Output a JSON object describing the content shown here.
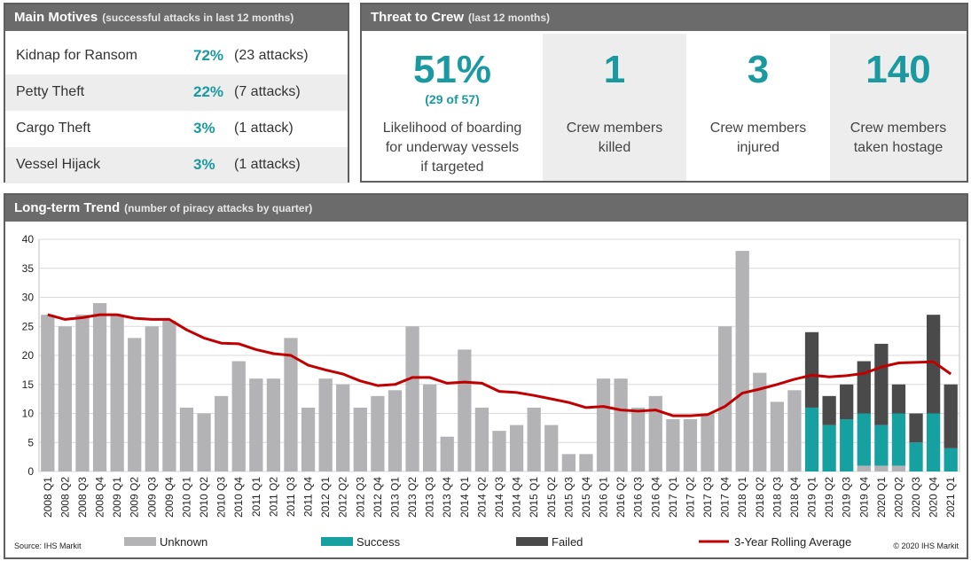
{
  "motives": {
    "title": "Main Motives",
    "subtitle": "(successful attacks in last 12 months)",
    "rows": [
      {
        "label": "Kidnap for Ransom",
        "pct": "72%",
        "count": "(23 attacks)"
      },
      {
        "label": "Petty Theft",
        "pct": "22%",
        "count": "(7 attacks)"
      },
      {
        "label": "Cargo Theft",
        "pct": "3%",
        "count": "(1 attack)"
      },
      {
        "label": "Vessel Hijack",
        "pct": "3%",
        "count": "(1 attacks)"
      }
    ]
  },
  "threat": {
    "title": "Threat to Crew",
    "subtitle": "(last 12 months)",
    "cells": [
      {
        "big": "51%",
        "sub": "(29 of 57)",
        "desc_lines": [
          "Likelihood of boarding",
          "for underway vessels",
          "if targeted"
        ]
      },
      {
        "big": "1",
        "sub": "",
        "desc_lines": [
          "Crew members",
          "killed"
        ]
      },
      {
        "big": "3",
        "sub": "",
        "desc_lines": [
          "Crew members",
          "injured"
        ]
      },
      {
        "big": "140",
        "sub": "",
        "desc_lines": [
          "Crew members",
          "taken hostage"
        ]
      }
    ]
  },
  "trend": {
    "title": "Long-term Trend",
    "subtitle": "(number of piracy attacks by quarter)",
    "source": "Source: IHS Markit",
    "copyright": "© 2020 IHS Markit"
  },
  "colors": {
    "unknown": "#b3b3b5",
    "success": "#16a0a0",
    "failed": "#4a4a4a",
    "average": "#c00000",
    "accent": "#1a9aa0"
  },
  "chart_data": {
    "type": "bar",
    "stacked": true,
    "ylim": [
      0,
      40
    ],
    "yticks": [
      0,
      5,
      10,
      15,
      20,
      25,
      30,
      35,
      40
    ],
    "grid": true,
    "legend_position": "bottom",
    "categories": [
      "2008 Q1",
      "2008 Q2",
      "2008 Q3",
      "2008 Q4",
      "2009 Q1",
      "2009 Q2",
      "2009 Q3",
      "2009 Q4",
      "2010 Q1",
      "2010 Q2",
      "2010 Q3",
      "2010 Q4",
      "2011 Q1",
      "2011 Q2",
      "2011 Q3",
      "2011 Q4",
      "2012 Q1",
      "2012 Q2",
      "2012 Q3",
      "2012 Q4",
      "2013 Q1",
      "2013 Q2",
      "2013 Q3",
      "2013 Q4",
      "2014 Q1",
      "2014 Q2",
      "2014 Q3",
      "2014 Q4",
      "2015 Q1",
      "2015 Q2",
      "2015 Q3",
      "2015 Q4",
      "2016 Q1",
      "2016 Q2",
      "2016 Q3",
      "2016 Q4",
      "2017 Q1",
      "2017 Q2",
      "2017 Q3",
      "2017 Q4",
      "2018 Q1",
      "2018 Q2",
      "2018 Q3",
      "2018 Q4",
      "2019 Q1",
      "2019 Q2",
      "2019 Q3",
      "2019 Q4",
      "2020 Q1",
      "2020 Q2",
      "2020 Q3",
      "2020 Q4",
      "2021 Q1"
    ],
    "series": [
      {
        "name": "Unknown",
        "kind": "bar",
        "values": [
          27,
          25,
          27,
          29,
          27,
          23,
          25,
          26,
          11,
          10,
          13,
          19,
          16,
          16,
          23,
          11,
          16,
          15,
          11,
          13,
          14,
          25,
          15,
          6,
          21,
          11,
          7,
          8,
          11,
          8,
          3,
          3,
          16,
          16,
          11,
          13,
          9,
          9,
          10,
          25,
          38,
          17,
          12,
          14,
          0,
          0,
          0,
          1,
          1,
          1,
          0,
          0,
          0
        ]
      },
      {
        "name": "Success",
        "kind": "bar",
        "values": [
          0,
          0,
          0,
          0,
          0,
          0,
          0,
          0,
          0,
          0,
          0,
          0,
          0,
          0,
          0,
          0,
          0,
          0,
          0,
          0,
          0,
          0,
          0,
          0,
          0,
          0,
          0,
          0,
          0,
          0,
          0,
          0,
          0,
          0,
          0,
          0,
          0,
          0,
          0,
          0,
          0,
          0,
          0,
          0,
          11,
          8,
          9,
          9,
          7,
          9,
          5,
          10,
          4
        ]
      },
      {
        "name": "Failed",
        "kind": "bar",
        "values": [
          0,
          0,
          0,
          0,
          0,
          0,
          0,
          0,
          0,
          0,
          0,
          0,
          0,
          0,
          0,
          0,
          0,
          0,
          0,
          0,
          0,
          0,
          0,
          0,
          0,
          0,
          0,
          0,
          0,
          0,
          0,
          0,
          0,
          0,
          0,
          0,
          0,
          0,
          0,
          0,
          0,
          0,
          0,
          0,
          13,
          5,
          6,
          9,
          14,
          5,
          5,
          17,
          11
        ]
      },
      {
        "name": "3-Year Rolling Average",
        "kind": "line",
        "values": [
          27,
          26.2,
          26.5,
          27,
          27,
          26.4,
          26.2,
          26.2,
          24.4,
          23,
          22.1,
          22,
          21,
          20.3,
          20,
          18.3,
          17.5,
          16.8,
          15.6,
          14.8,
          15,
          16.2,
          16.2,
          15.2,
          15.4,
          15.2,
          13.8,
          13.6,
          13.1,
          12.5,
          11.9,
          11,
          11.2,
          10.6,
          10.4,
          10.6,
          9.6,
          9.6,
          9.8,
          11.2,
          13.5,
          14.2,
          15,
          15.9,
          16.6,
          16.3,
          16.5,
          16.9,
          18,
          18.7,
          18.8,
          18.9,
          16.8
        ]
      }
    ]
  }
}
